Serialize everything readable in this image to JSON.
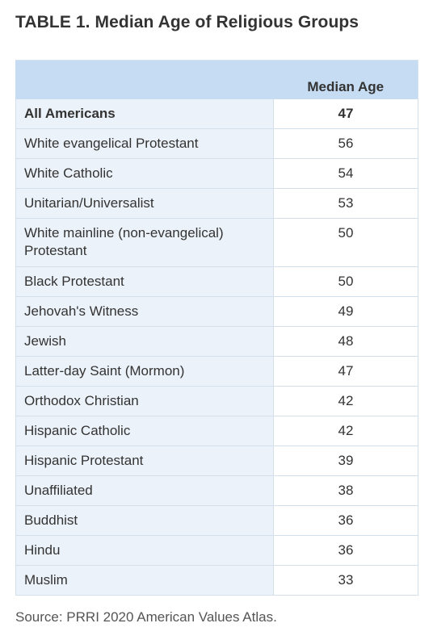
{
  "title": "TABLE 1. Median Age of Religious Groups",
  "table": {
    "column_headers": [
      "",
      "Median Age"
    ],
    "rows": [
      {
        "label": "All Americans",
        "value": "47"
      },
      {
        "label": "White evangelical Protestant",
        "value": "56"
      },
      {
        "label": "White Catholic",
        "value": "54"
      },
      {
        "label": "Unitarian/Universalist",
        "value": "53"
      },
      {
        "label": "White mainline (non-evangelical) Protestant",
        "value": "50"
      },
      {
        "label": "Black Protestant",
        "value": "50"
      },
      {
        "label": "Jehovah's Witness",
        "value": "49"
      },
      {
        "label": "Jewish",
        "value": "48"
      },
      {
        "label": "Latter-day Saint (Mormon)",
        "value": "47"
      },
      {
        "label": "Orthodox Christian",
        "value": "42"
      },
      {
        "label": "Hispanic Catholic",
        "value": "42"
      },
      {
        "label": "Hispanic Protestant",
        "value": "39"
      },
      {
        "label": "Unaffiliated",
        "value": "38"
      },
      {
        "label": "Buddhist",
        "value": "36"
      },
      {
        "label": "Hindu",
        "value": "36"
      },
      {
        "label": "Muslim",
        "value": "33"
      }
    ]
  },
  "source": "Source: PRRI 2020 American Values Atlas.",
  "colors": {
    "header_bg": "#c6dcf3",
    "label_bg": "#ecf2f9",
    "value_bg": "#ffffff",
    "text": "#333333"
  }
}
